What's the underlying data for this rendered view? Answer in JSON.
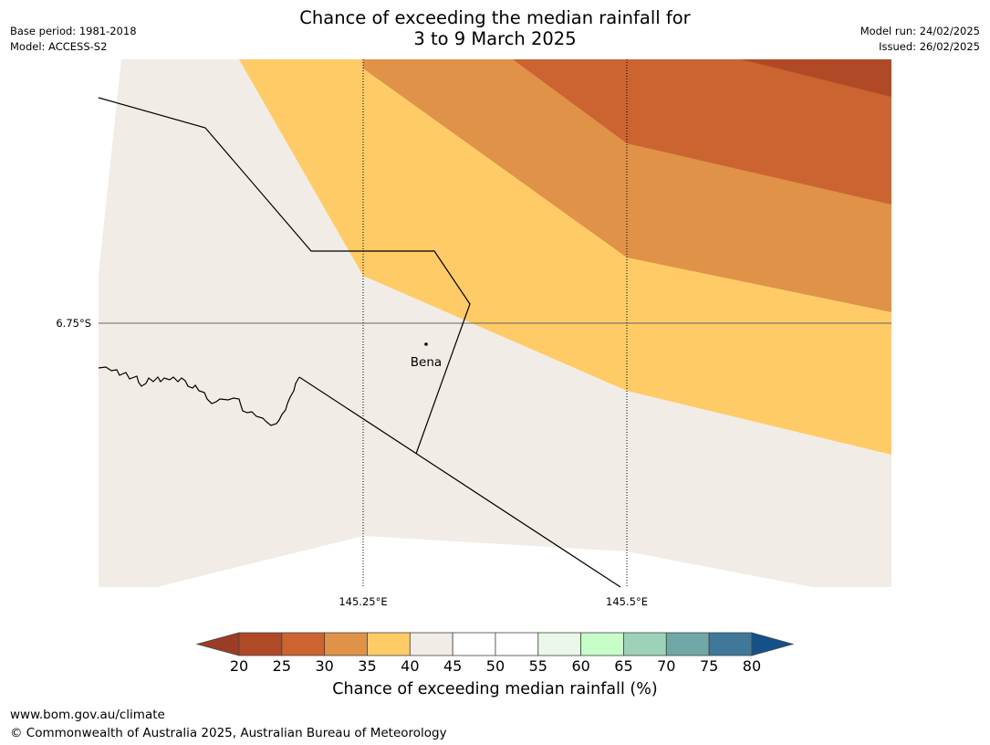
{
  "title": {
    "line1": "Chance of exceeding the median rainfall for",
    "line2": "3 to 9 March 2025"
  },
  "meta_left": {
    "base_period": "Base period: 1981-2018",
    "model": "Model: ACCESS-S2"
  },
  "meta_right": {
    "model_run": "Model run: 24/02/2025",
    "issued": "Issued: 26/02/2025"
  },
  "map": {
    "latitude_labels": [
      "6.75°S"
    ],
    "longitude_labels": [
      "145.25°E",
      "145.5°E"
    ],
    "place_name": "Bena"
  },
  "colorbar": {
    "title": "Chance of exceeding median rainfall (%)",
    "ticks": [
      "20",
      "25",
      "30",
      "35",
      "40",
      "45",
      "50",
      "55",
      "60",
      "65",
      "70",
      "75",
      "80"
    ],
    "colors": {
      "below_20": "#9c3c26",
      "20_25": "#b04a26",
      "25_30": "#cb6431",
      "30_35": "#df9248",
      "35_40": "#fecb66",
      "40_45": "#f1ece6",
      "45_50": "#ffffff",
      "50_55": "#ffffff",
      "55_60": "#eaf7e9",
      "60_65": "#c6fdc8",
      "65_70": "#9dd1b8",
      "70_75": "#6fa8a6",
      "75_80": "#3f7899",
      "above_80": "#145089"
    }
  },
  "footer": {
    "url": "www.bom.gov.au/climate",
    "copyright": "© Commonwealth of Australia 2025, Australian Bureau of Meteorology"
  }
}
